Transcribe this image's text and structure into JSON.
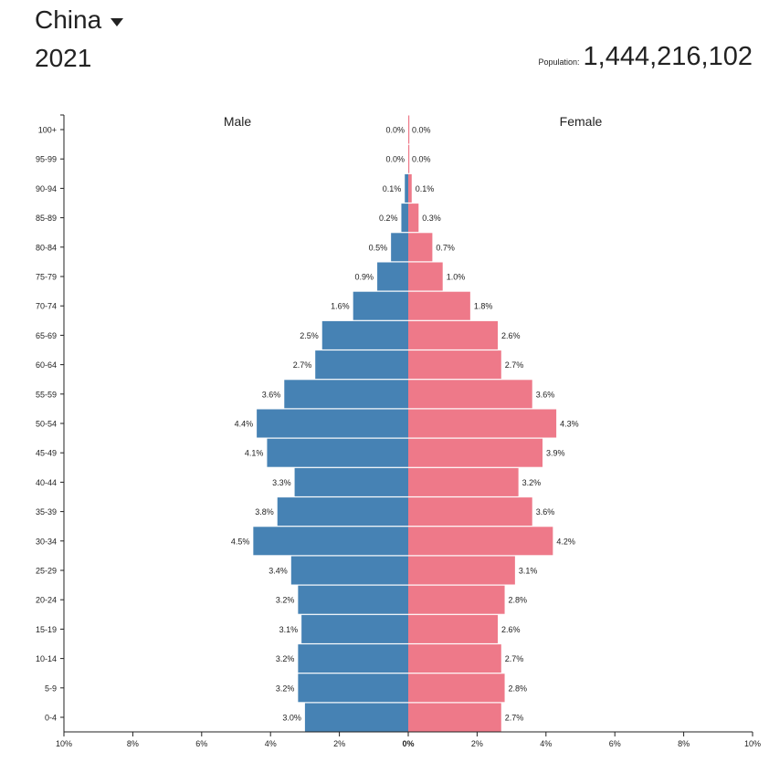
{
  "header": {
    "country": "China",
    "year": "2021",
    "population_label": "Population:",
    "population_value": "1,444,216,102"
  },
  "chart_data": {
    "type": "bar",
    "orientation": "horizontal-pyramid",
    "categories": [
      "100+",
      "95-99",
      "90-94",
      "85-89",
      "80-84",
      "75-79",
      "70-74",
      "65-69",
      "60-64",
      "55-59",
      "50-54",
      "45-49",
      "40-44",
      "35-39",
      "30-34",
      "25-29",
      "20-24",
      "15-19",
      "10-14",
      "5-9",
      "0-4"
    ],
    "series": [
      {
        "name": "Male",
        "color": "#4682b4",
        "values": [
          0.0,
          0.0,
          0.1,
          0.2,
          0.5,
          0.9,
          1.6,
          2.5,
          2.7,
          3.6,
          4.4,
          4.1,
          3.3,
          3.8,
          4.5,
          3.4,
          3.2,
          3.1,
          3.2,
          3.2,
          3.0
        ],
        "labels": [
          "0.0%",
          "0.0%",
          "0.1%",
          "0.2%",
          "0.5%",
          "0.9%",
          "1.6%",
          "2.5%",
          "2.7%",
          "3.6%",
          "4.4%",
          "4.1%",
          "3.3%",
          "3.8%",
          "4.5%",
          "3.4%",
          "3.2%",
          "3.1%",
          "3.2%",
          "3.2%",
          "3.0%"
        ]
      },
      {
        "name": "Female",
        "color": "#ee7989",
        "values": [
          0.0,
          0.0,
          0.1,
          0.3,
          0.7,
          1.0,
          1.8,
          2.6,
          2.7,
          3.6,
          4.3,
          3.9,
          3.2,
          3.6,
          4.2,
          3.1,
          2.8,
          2.6,
          2.7,
          2.8,
          2.7
        ],
        "labels": [
          "0.0%",
          "0.0%",
          "0.1%",
          "0.3%",
          "0.7%",
          "1.0%",
          "1.8%",
          "2.6%",
          "2.7%",
          "3.6%",
          "4.3%",
          "3.9%",
          "3.2%",
          "3.6%",
          "4.2%",
          "3.1%",
          "2.8%",
          "2.6%",
          "2.7%",
          "2.8%",
          "2.7%"
        ]
      }
    ],
    "x_ticks": [
      "10%",
      "8%",
      "6%",
      "4%",
      "2%",
      "0%",
      "2%",
      "4%",
      "6%",
      "8%",
      "10%"
    ],
    "xlim": [
      -10,
      10
    ],
    "grid": false
  }
}
